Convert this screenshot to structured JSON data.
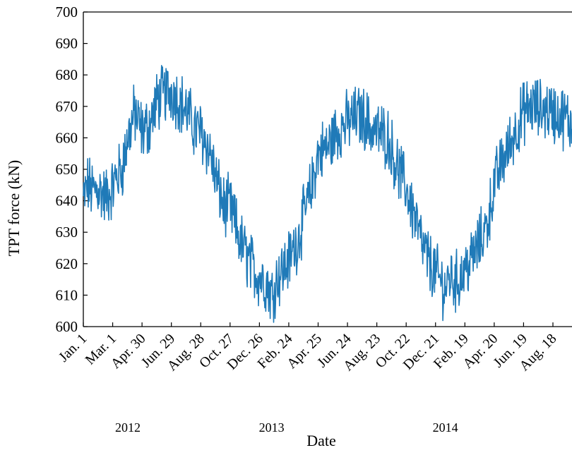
{
  "chart_data": {
    "type": "line",
    "title": "",
    "xlabel": "Date",
    "ylabel": "TPT force (kN)",
    "ylim": [
      600,
      700
    ],
    "yticks": [
      600,
      610,
      620,
      630,
      640,
      650,
      660,
      670,
      680,
      690,
      700
    ],
    "xlim": [
      "2012-01-01",
      "2014-09-26"
    ],
    "xtick_labels": [
      {
        "date": "2012-01-01",
        "label": "Jan. 1"
      },
      {
        "date": "2012-03-01",
        "label": "Mar. 1"
      },
      {
        "date": "2012-04-30",
        "label": "Apr. 30"
      },
      {
        "date": "2012-06-29",
        "label": "Jun. 29"
      },
      {
        "date": "2012-08-28",
        "label": "Aug. 28"
      },
      {
        "date": "2012-10-27",
        "label": "Oct. 27"
      },
      {
        "date": "2012-12-26",
        "label": "Dec. 26"
      },
      {
        "date": "2013-02-24",
        "label": "Feb. 24"
      },
      {
        "date": "2013-04-25",
        "label": "Apr. 25"
      },
      {
        "date": "2013-06-24",
        "label": "Jun. 24"
      },
      {
        "date": "2013-08-23",
        "label": "Aug. 23"
      },
      {
        "date": "2013-10-22",
        "label": "Oct. 22"
      },
      {
        "date": "2013-12-21",
        "label": "Dec. 21"
      },
      {
        "date": "2014-02-19",
        "label": "Feb. 19"
      },
      {
        "date": "2014-04-20",
        "label": "Apr. 20"
      },
      {
        "date": "2014-06-19",
        "label": "Jun. 19"
      },
      {
        "date": "2014-08-18",
        "label": "Aug. 18"
      }
    ],
    "year_labels": [
      {
        "date": "2012-04-01",
        "label": "2012"
      },
      {
        "date": "2013-01-20",
        "label": "2013"
      },
      {
        "date": "2014-01-10",
        "label": "2014"
      }
    ],
    "grid": false,
    "legend": "none",
    "series": [
      {
        "color": "#1f7ab8",
        "x": [
          "2012-01-01",
          "2012-01-10",
          "2012-01-20",
          "2012-02-01",
          "2012-02-15",
          "2012-03-01",
          "2012-03-10",
          "2012-03-20",
          "2012-04-01",
          "2012-04-15",
          "2012-04-30",
          "2012-05-15",
          "2012-06-01",
          "2012-06-15",
          "2012-06-29",
          "2012-07-15",
          "2012-08-01",
          "2012-08-15",
          "2012-08-28",
          "2012-09-15",
          "2012-10-01",
          "2012-10-15",
          "2012-10-27",
          "2012-11-15",
          "2012-12-01",
          "2012-12-15",
          "2012-12-26",
          "2013-01-10",
          "2013-01-20",
          "2013-02-01",
          "2013-02-12",
          "2013-02-24",
          "2013-03-15",
          "2013-04-01",
          "2013-04-10",
          "2013-04-25",
          "2013-05-15",
          "2013-06-01",
          "2013-06-24",
          "2013-07-15",
          "2013-08-01",
          "2013-08-10",
          "2013-08-23",
          "2013-09-15",
          "2013-10-01",
          "2013-10-22",
          "2013-11-10",
          "2013-11-25",
          "2013-12-10",
          "2013-12-21",
          "2014-01-10",
          "2014-01-20",
          "2014-02-01",
          "2014-02-19",
          "2014-03-10",
          "2014-03-25",
          "2014-04-05",
          "2014-04-20",
          "2014-05-05",
          "2014-05-20",
          "2014-06-01",
          "2014-06-19",
          "2014-07-05",
          "2014-07-20",
          "2014-08-05",
          "2014-08-18",
          "2014-09-01",
          "2014-09-15",
          "2014-09-26"
        ],
        "values": [
          640,
          645,
          643,
          644,
          641,
          644,
          648,
          650,
          660,
          668,
          662,
          664,
          672,
          674,
          675,
          672,
          668,
          663,
          662,
          656,
          645,
          638,
          638,
          628,
          622,
          618,
          616,
          614,
          610,
          616,
          618,
          621,
          628,
          638,
          643,
          655,
          657,
          662,
          665,
          667,
          666,
          663,
          662,
          660,
          652,
          644,
          634,
          625,
          620,
          617,
          612,
          616,
          614,
          618,
          623,
          628,
          632,
          645,
          652,
          657,
          662,
          668,
          670,
          669,
          669,
          668,
          667,
          666,
          664
        ]
      }
    ]
  }
}
